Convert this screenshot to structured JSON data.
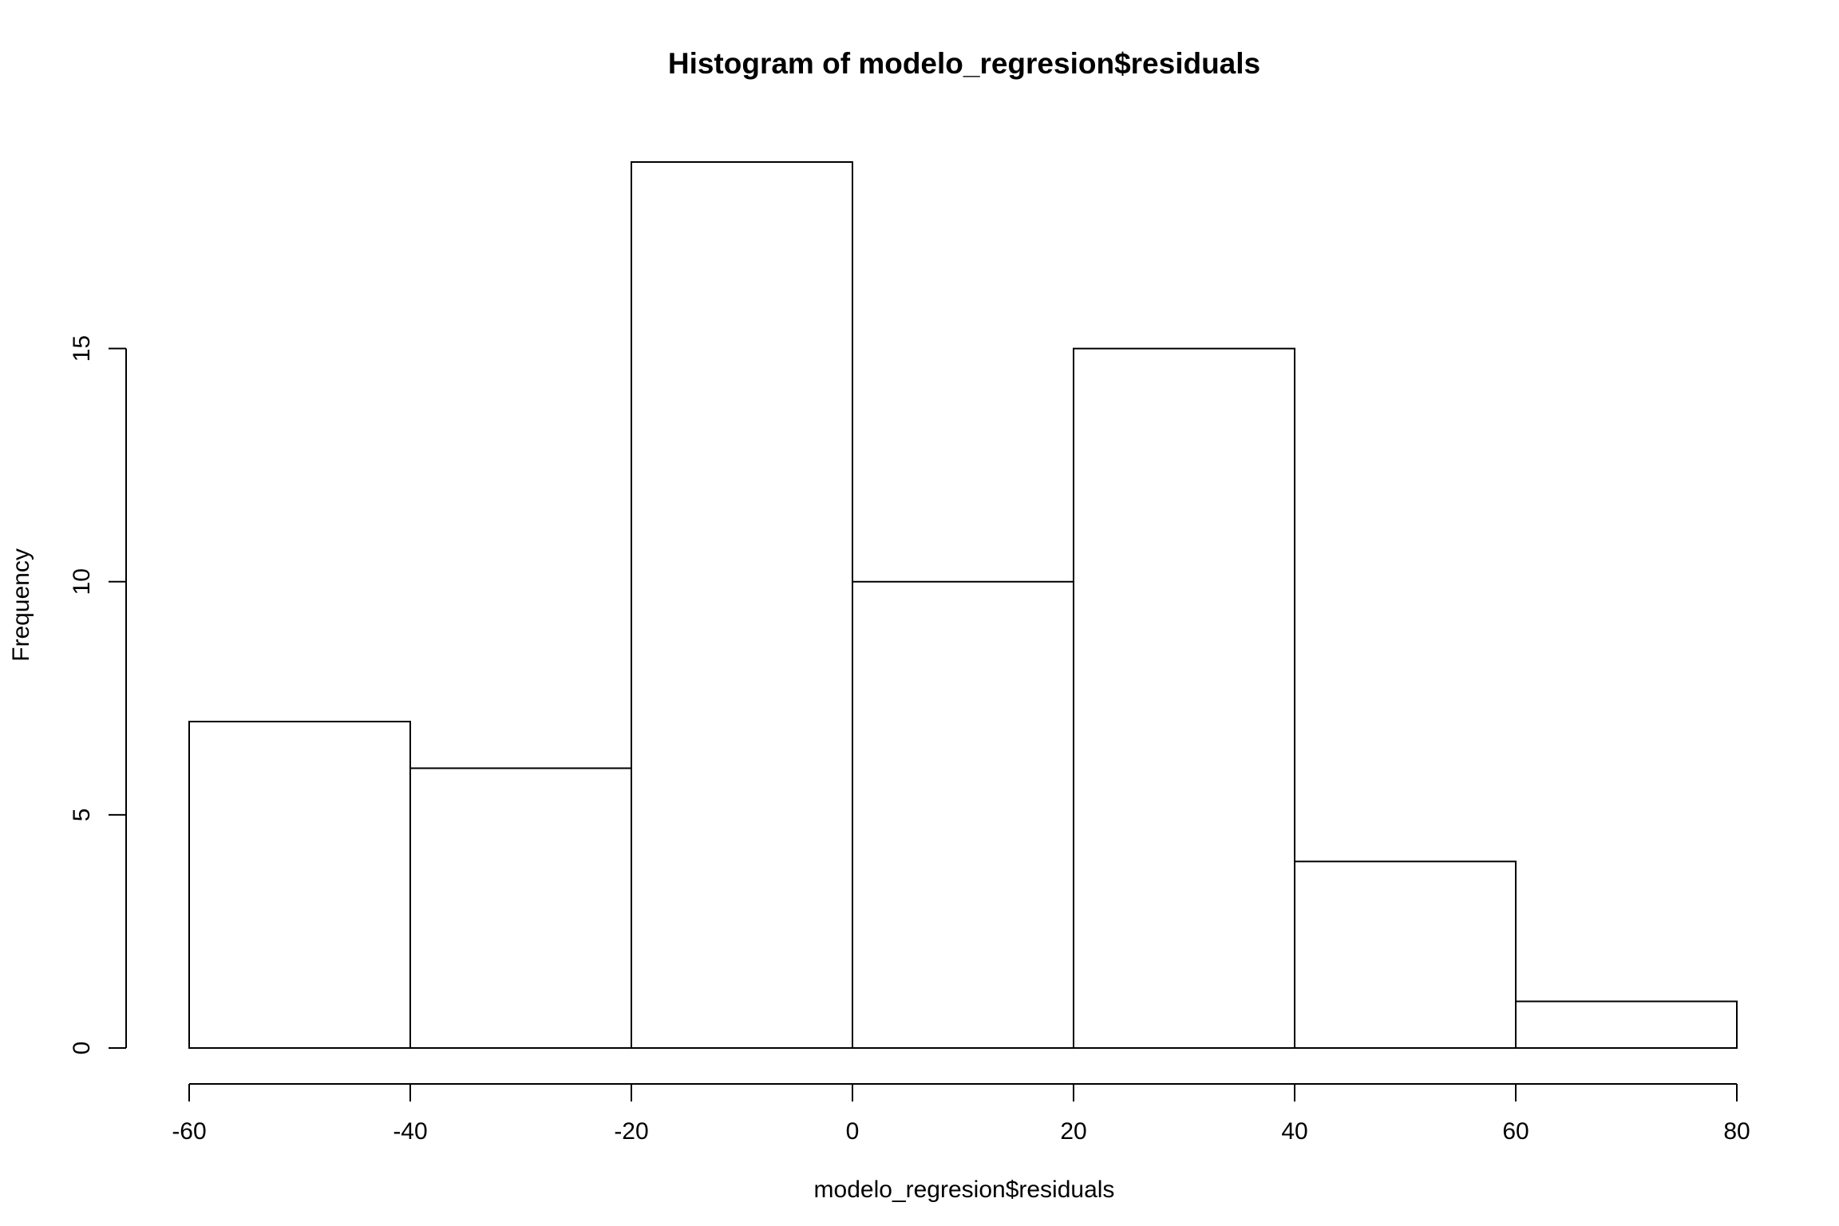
{
  "chart_data": {
    "type": "bar",
    "title": "Histogram of modelo_regresion$residuals",
    "xlabel": "modelo_regresion$residuals",
    "ylabel": "Frequency",
    "bins": [
      {
        "start": -60,
        "end": -40,
        "count": 7
      },
      {
        "start": -40,
        "end": -20,
        "count": 6
      },
      {
        "start": -20,
        "end": 0,
        "count": 19
      },
      {
        "start": 0,
        "end": 20,
        "count": 10
      },
      {
        "start": 20,
        "end": 40,
        "count": 15
      },
      {
        "start": 40,
        "end": 60,
        "count": 4
      },
      {
        "start": 60,
        "end": 80,
        "count": 1
      }
    ],
    "xlim": [
      -60,
      80
    ],
    "ylim": [
      0,
      19
    ],
    "xticks": [
      -60,
      -40,
      -20,
      0,
      20,
      40,
      60,
      80
    ],
    "xtick_labels": [
      "-60",
      "-40",
      "-20",
      "0",
      "20",
      "40",
      "60",
      "80"
    ],
    "yticks": [
      0,
      5,
      10,
      15
    ],
    "ytick_labels": [
      "0",
      "5",
      "10",
      "15"
    ],
    "grid": false,
    "bar_fill": "#ffffff",
    "bar_stroke": "#000000"
  }
}
